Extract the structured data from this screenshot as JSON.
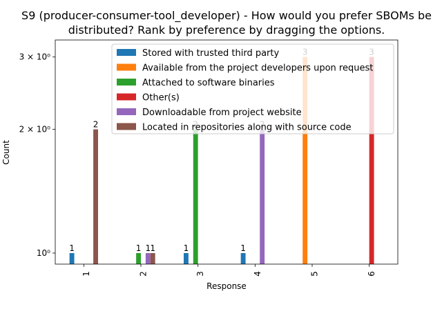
{
  "chart_data": {
    "type": "bar",
    "title_line1": "S9 (producer-consumer-tool_developer) - How would you prefer SBOMs be",
    "title_line2": "distributed? Rank by preference by dragging the options.",
    "xlabel": "Response",
    "ylabel": "Count",
    "yscale": "log",
    "ylim": [
      0.94,
      3.3
    ],
    "categories": [
      "1",
      "2",
      "3",
      "4",
      "5",
      "6"
    ],
    "y_ticks": [
      {
        "value": 1,
        "label": "10⁰"
      },
      {
        "value": 2,
        "label": "2 × 10⁰"
      },
      {
        "value": 3,
        "label": "3 × 10⁰"
      }
    ],
    "series": [
      {
        "name": "Stored with trusted third party",
        "color": "#1f77b4",
        "values": [
          1,
          null,
          1,
          1,
          null,
          null
        ]
      },
      {
        "name": "Available from the project developers upon request",
        "color": "#ff7f0e",
        "values": [
          null,
          null,
          null,
          null,
          3,
          null
        ]
      },
      {
        "name": "Attached to software binaries",
        "color": "#2ca02c",
        "values": [
          null,
          1,
          2,
          null,
          null,
          null
        ]
      },
      {
        "name": "Other(s)",
        "color": "#d62728",
        "values": [
          null,
          null,
          null,
          null,
          null,
          3
        ]
      },
      {
        "name": "Downloadable from project website",
        "color": "#9467bd",
        "values": [
          null,
          1,
          null,
          2,
          null,
          null
        ]
      },
      {
        "name": "Located in repositories along with source code",
        "color": "#8c564b",
        "values": [
          2,
          1,
          null,
          null,
          null,
          null
        ]
      }
    ],
    "legend_position": "upper-right",
    "grid": false
  }
}
